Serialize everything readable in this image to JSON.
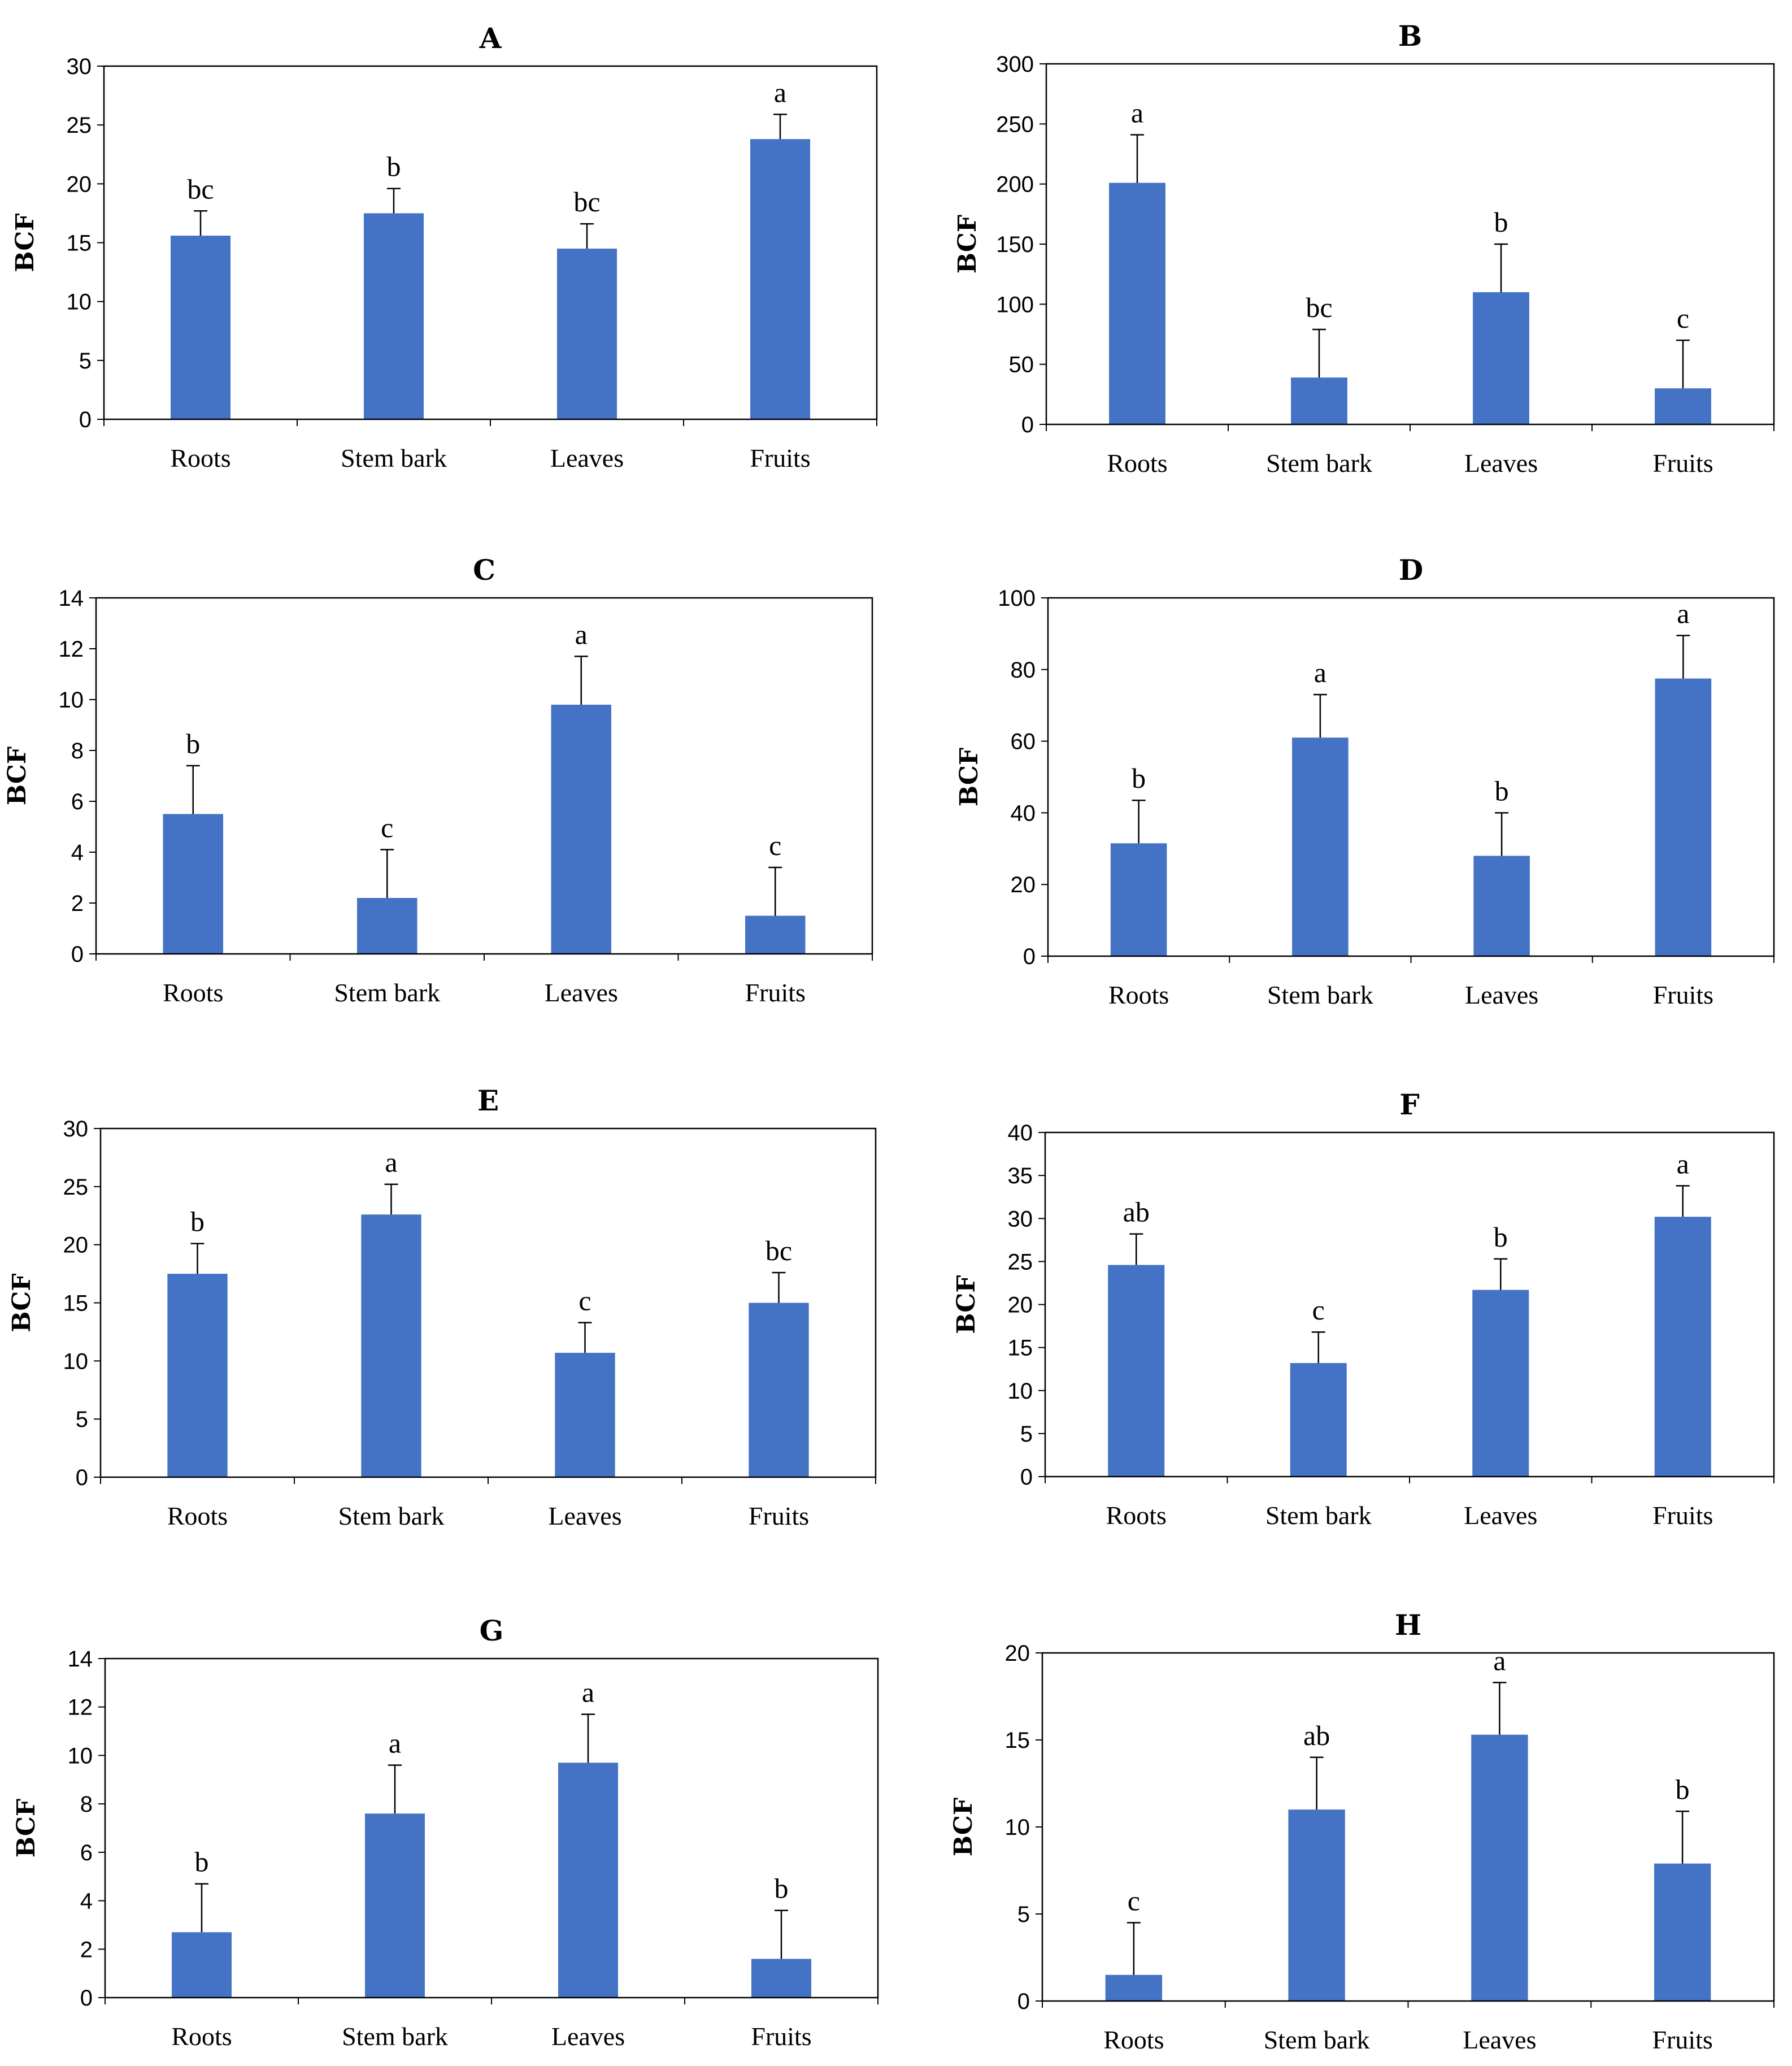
{
  "figure": {
    "bar_color": "#4472C4",
    "axis_color": "#000000"
  },
  "chart_data": [
    {
      "panel": "A",
      "type": "bar",
      "title": "A",
      "ylabel": "BCF",
      "xlabel": "",
      "categories": [
        "Roots",
        "Stem bark",
        "Leaves",
        "Fruits"
      ],
      "values": [
        15.6,
        17.5,
        14.5,
        23.8
      ],
      "errors": [
        2.1,
        2.1,
        2.1,
        2.1
      ],
      "letters": [
        "bc",
        "b",
        "bc",
        "a"
      ],
      "ylim": [
        0,
        30
      ],
      "yticks": [
        0,
        5,
        10,
        15,
        20,
        25,
        30
      ]
    },
    {
      "panel": "B",
      "type": "bar",
      "title": "B",
      "ylabel": "BCF",
      "xlabel": "",
      "categories": [
        "Roots",
        "Stem bark",
        "Leaves",
        "Fruits"
      ],
      "values": [
        201,
        39,
        110,
        30
      ],
      "errors": [
        40,
        40,
        40,
        40
      ],
      "letters": [
        "a",
        "bc",
        "b",
        "c"
      ],
      "ylim": [
        0,
        300
      ],
      "yticks": [
        0,
        50,
        100,
        150,
        200,
        250,
        300
      ]
    },
    {
      "panel": "C",
      "type": "bar",
      "title": "C",
      "ylabel": "BCF",
      "xlabel": "",
      "categories": [
        "Roots",
        "Stem bark",
        "Leaves",
        "Fruits"
      ],
      "values": [
        5.5,
        2.2,
        9.8,
        1.5
      ],
      "errors": [
        1.9,
        1.9,
        1.9,
        1.9
      ],
      "letters": [
        "b",
        "c",
        "a",
        "c"
      ],
      "ylim": [
        0,
        14
      ],
      "yticks": [
        0,
        2,
        4,
        6,
        8,
        10,
        12,
        14
      ]
    },
    {
      "panel": "D",
      "type": "bar",
      "title": "D",
      "ylabel": "BCF",
      "xlabel": "",
      "categories": [
        "Roots",
        "Stem bark",
        "Leaves",
        "Fruits"
      ],
      "values": [
        31.5,
        61,
        28,
        77.5
      ],
      "errors": [
        12,
        12,
        12,
        12
      ],
      "letters": [
        "b",
        "a",
        "b",
        "a"
      ],
      "ylim": [
        0,
        100
      ],
      "yticks": [
        0,
        20,
        40,
        60,
        80,
        100
      ]
    },
    {
      "panel": "E",
      "type": "bar",
      "title": "E",
      "ylabel": "BCF",
      "xlabel": "",
      "categories": [
        "Roots",
        "Stem bark",
        "Leaves",
        "Fruits"
      ],
      "values": [
        17.5,
        22.6,
        10.7,
        15
      ],
      "errors": [
        2.6,
        2.6,
        2.6,
        2.6
      ],
      "letters": [
        "b",
        "a",
        "c",
        "bc"
      ],
      "ylim": [
        0,
        30
      ],
      "yticks": [
        0,
        5,
        10,
        15,
        20,
        25,
        30
      ]
    },
    {
      "panel": "F",
      "type": "bar",
      "title": "F",
      "ylabel": "BCF",
      "xlabel": "",
      "categories": [
        "Roots",
        "Stem bark",
        "Leaves",
        "Fruits"
      ],
      "values": [
        24.6,
        13.2,
        21.7,
        30.2
      ],
      "errors": [
        3.6,
        3.6,
        3.6,
        3.6
      ],
      "letters": [
        "ab",
        "c",
        "b",
        "a"
      ],
      "ylim": [
        0,
        40
      ],
      "yticks": [
        0,
        5,
        10,
        15,
        20,
        25,
        30,
        35,
        40
      ]
    },
    {
      "panel": "G",
      "type": "bar",
      "title": "G",
      "ylabel": "BCF",
      "xlabel": "",
      "categories": [
        "Roots",
        "Stem bark",
        "Leaves",
        "Fruits"
      ],
      "values": [
        2.7,
        7.6,
        9.7,
        1.6
      ],
      "errors": [
        2.0,
        2.0,
        2.0,
        2.0
      ],
      "letters": [
        "b",
        "a",
        "a",
        "b"
      ],
      "ylim": [
        0,
        14
      ],
      "yticks": [
        0,
        2,
        4,
        6,
        8,
        10,
        12,
        14
      ]
    },
    {
      "panel": "H",
      "type": "bar",
      "title": "H",
      "ylabel": "BCF",
      "xlabel": "",
      "categories": [
        "Roots",
        "Stem bark",
        "Leaves",
        "Fruits"
      ],
      "values": [
        1.5,
        11,
        15.3,
        7.9
      ],
      "errors": [
        3.0,
        3.0,
        3.0,
        3.0
      ],
      "letters": [
        "c",
        "ab",
        "a",
        "b"
      ],
      "ylim": [
        0,
        20
      ],
      "yticks": [
        0,
        5,
        10,
        15,
        20
      ]
    }
  ]
}
